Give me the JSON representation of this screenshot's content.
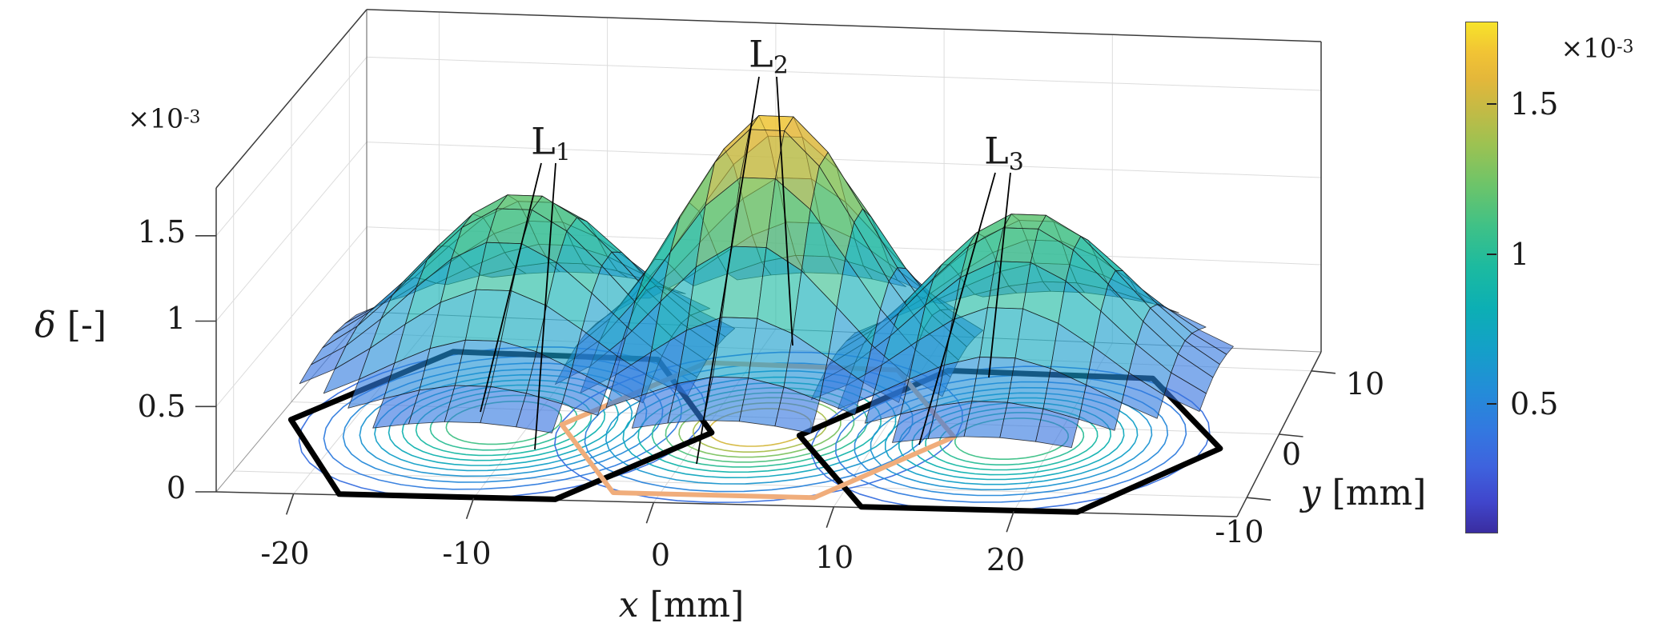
{
  "axes": {
    "x": {
      "title_symbol": "x",
      "title_unit": "[mm]",
      "tick_labels": [
        "-20",
        "-10",
        "0",
        "10",
        "20"
      ],
      "tick_values": [
        -20,
        -10,
        0,
        10,
        20
      ]
    },
    "y": {
      "title_symbol": "y",
      "title_unit": "[mm]",
      "tick_labels": [
        "-10",
        "0",
        "10"
      ],
      "tick_values": [
        -10,
        0,
        10
      ]
    },
    "z": {
      "title_symbol": "δ",
      "title_unit": "[-]",
      "exponent_mantissa": "×10",
      "exponent_power": "-3",
      "tick_labels": [
        "0",
        "0.5",
        "1",
        "1.5"
      ],
      "tick_values": [
        0,
        0.5,
        1,
        1.5
      ]
    }
  },
  "colorbar": {
    "tick_labels": [
      "0.5",
      "1",
      "1.5"
    ],
    "tick_values": [
      0.5,
      1,
      1.5
    ],
    "exponent_mantissa": "×10",
    "exponent_power": "-3",
    "min_value_e3": 0.07,
    "max_value_e3": 1.78
  },
  "annotations": {
    "lens_labels": [
      {
        "id": "L1",
        "text": "L",
        "subscript": "1"
      },
      {
        "id": "L2",
        "text": "L",
        "subscript": "2"
      },
      {
        "id": "L3",
        "text": "L",
        "subscript": "3"
      }
    ]
  },
  "chart_data": {
    "type": "surface",
    "description": "Three overlapping semi-transparent 3D surface domes of normalized deflection delta over x-y plane, one per lens L1, L2, L3, with projected contour rings and hexagonal lens aperture outlines drawn on the base plane",
    "xlabel": "x [mm]",
    "ylabel": "y [mm]",
    "zlabel": "δ [-]",
    "x_range_mm": [
      -24,
      32
    ],
    "y_range_mm": [
      -13,
      13
    ],
    "z_range_e3": [
      0,
      1.78
    ],
    "colormap": "parula",
    "surface_alpha": 0.62,
    "edge_base_delta_e3": 0.21,
    "grid": true,
    "lenses": [
      {
        "label": "L1",
        "center_mm": [
          -13,
          0
        ],
        "peak_delta_e3": 1.25,
        "sigma_mm": 8.0,
        "aperture_shape": "hexagon",
        "aperture_radius_mm": 12.0,
        "aperture_color": "#000000"
      },
      {
        "label": "L2",
        "center_mm": [
          0,
          0
        ],
        "peak_delta_e3": 1.75,
        "sigma_mm": 7.4,
        "aperture_shape": "hexagon",
        "aperture_radius_mm": 11.2,
        "aperture_color": "#f0ad7b"
      },
      {
        "label": "L3",
        "center_mm": [
          13,
          0
        ],
        "peak_delta_e3": 1.24,
        "sigma_mm": 8.0,
        "aperture_shape": "hexagon",
        "aperture_radius_mm": 12.0,
        "aperture_color": "#000000"
      }
    ],
    "contour_levels_per_lens": 10,
    "colormap_stops": [
      {
        "t": 0.0,
        "color": "#3a2da0"
      },
      {
        "t": 0.06,
        "color": "#4046cc"
      },
      {
        "t": 0.13,
        "color": "#3e63de"
      },
      {
        "t": 0.2,
        "color": "#3378e0"
      },
      {
        "t": 0.28,
        "color": "#238dd8"
      },
      {
        "t": 0.36,
        "color": "#14a0c8"
      },
      {
        "t": 0.44,
        "color": "#0cafb4"
      },
      {
        "t": 0.52,
        "color": "#1cbaa0"
      },
      {
        "t": 0.6,
        "color": "#3fc187"
      },
      {
        "t": 0.68,
        "color": "#6cc46a"
      },
      {
        "t": 0.76,
        "color": "#9cc252"
      },
      {
        "t": 0.83,
        "color": "#c4ba45"
      },
      {
        "t": 0.89,
        "color": "#e4b73a"
      },
      {
        "t": 0.94,
        "color": "#f1c335"
      },
      {
        "t": 1.0,
        "color": "#f7e32a"
      }
    ]
  }
}
